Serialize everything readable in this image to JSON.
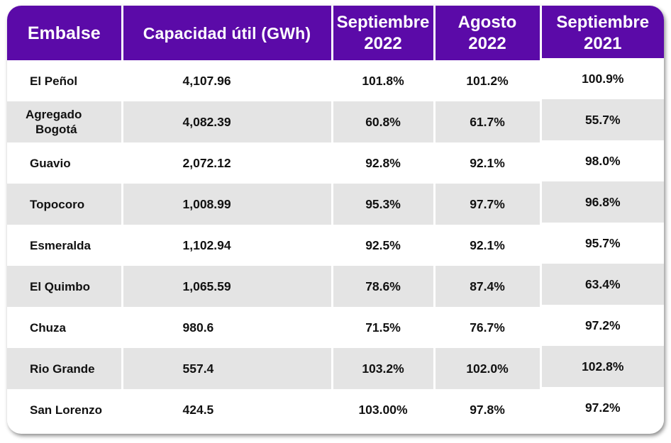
{
  "table": {
    "headers": [
      {
        "line1": "Embalse",
        "line2": ""
      },
      {
        "line1": "Capacidad útil (GWh)",
        "line2": ""
      },
      {
        "line1": "Septiembre",
        "line2": "2022"
      },
      {
        "line1": "Agosto",
        "line2": "2022"
      },
      {
        "line1": "Septiembre",
        "line2": "2021"
      }
    ],
    "rows": [
      {
        "name": "El Peñol",
        "name2": "",
        "capacity": "4,107.96",
        "sep2022": "101.8%",
        "aug2022": "101.2%",
        "sep2021": "100.9%"
      },
      {
        "name": "Agregado",
        "name2": "Bogotá",
        "capacity": "4,082.39",
        "sep2022": "60.8%",
        "aug2022": "61.7%",
        "sep2021": "55.7%"
      },
      {
        "name": "Guavio",
        "name2": "",
        "capacity": "2,072.12",
        "sep2022": "92.8%",
        "aug2022": "92.1%",
        "sep2021": "98.0%"
      },
      {
        "name": "Topocoro",
        "name2": "",
        "capacity": "1,008.99",
        "sep2022": "95.3%",
        "aug2022": "97.7%",
        "sep2021": "96.8%"
      },
      {
        "name": "Esmeralda",
        "name2": "",
        "capacity": "1,102.94",
        "sep2022": "92.5%",
        "aug2022": "92.1%",
        "sep2021": "95.7%"
      },
      {
        "name": "El Quimbo",
        "name2": "",
        "capacity": "1,065.59",
        "sep2022": "78.6%",
        "aug2022": "87.4%",
        "sep2021": "63.4%"
      },
      {
        "name": "Chuza",
        "name2": "",
        "capacity": "980.6",
        "sep2022": "71.5%",
        "aug2022": "76.7%",
        "sep2021": "97.2%"
      },
      {
        "name": "Rio Grande",
        "name2": "",
        "capacity": "557.4",
        "sep2022": "103.2%",
        "aug2022": "102.0%",
        "sep2021": "102.8%"
      },
      {
        "name": "San Lorenzo",
        "name2": "",
        "capacity": "424.5",
        "sep2022": "103.00%",
        "aug2022": "97.8%",
        "sep2021": "97.2%"
      }
    ]
  },
  "colors": {
    "header_bg": "#5b0aa8",
    "header_text": "#ffffff",
    "row_alt_bg": "#e4e4e4",
    "row_bg": "#ffffff",
    "cell_text": "#111111"
  }
}
